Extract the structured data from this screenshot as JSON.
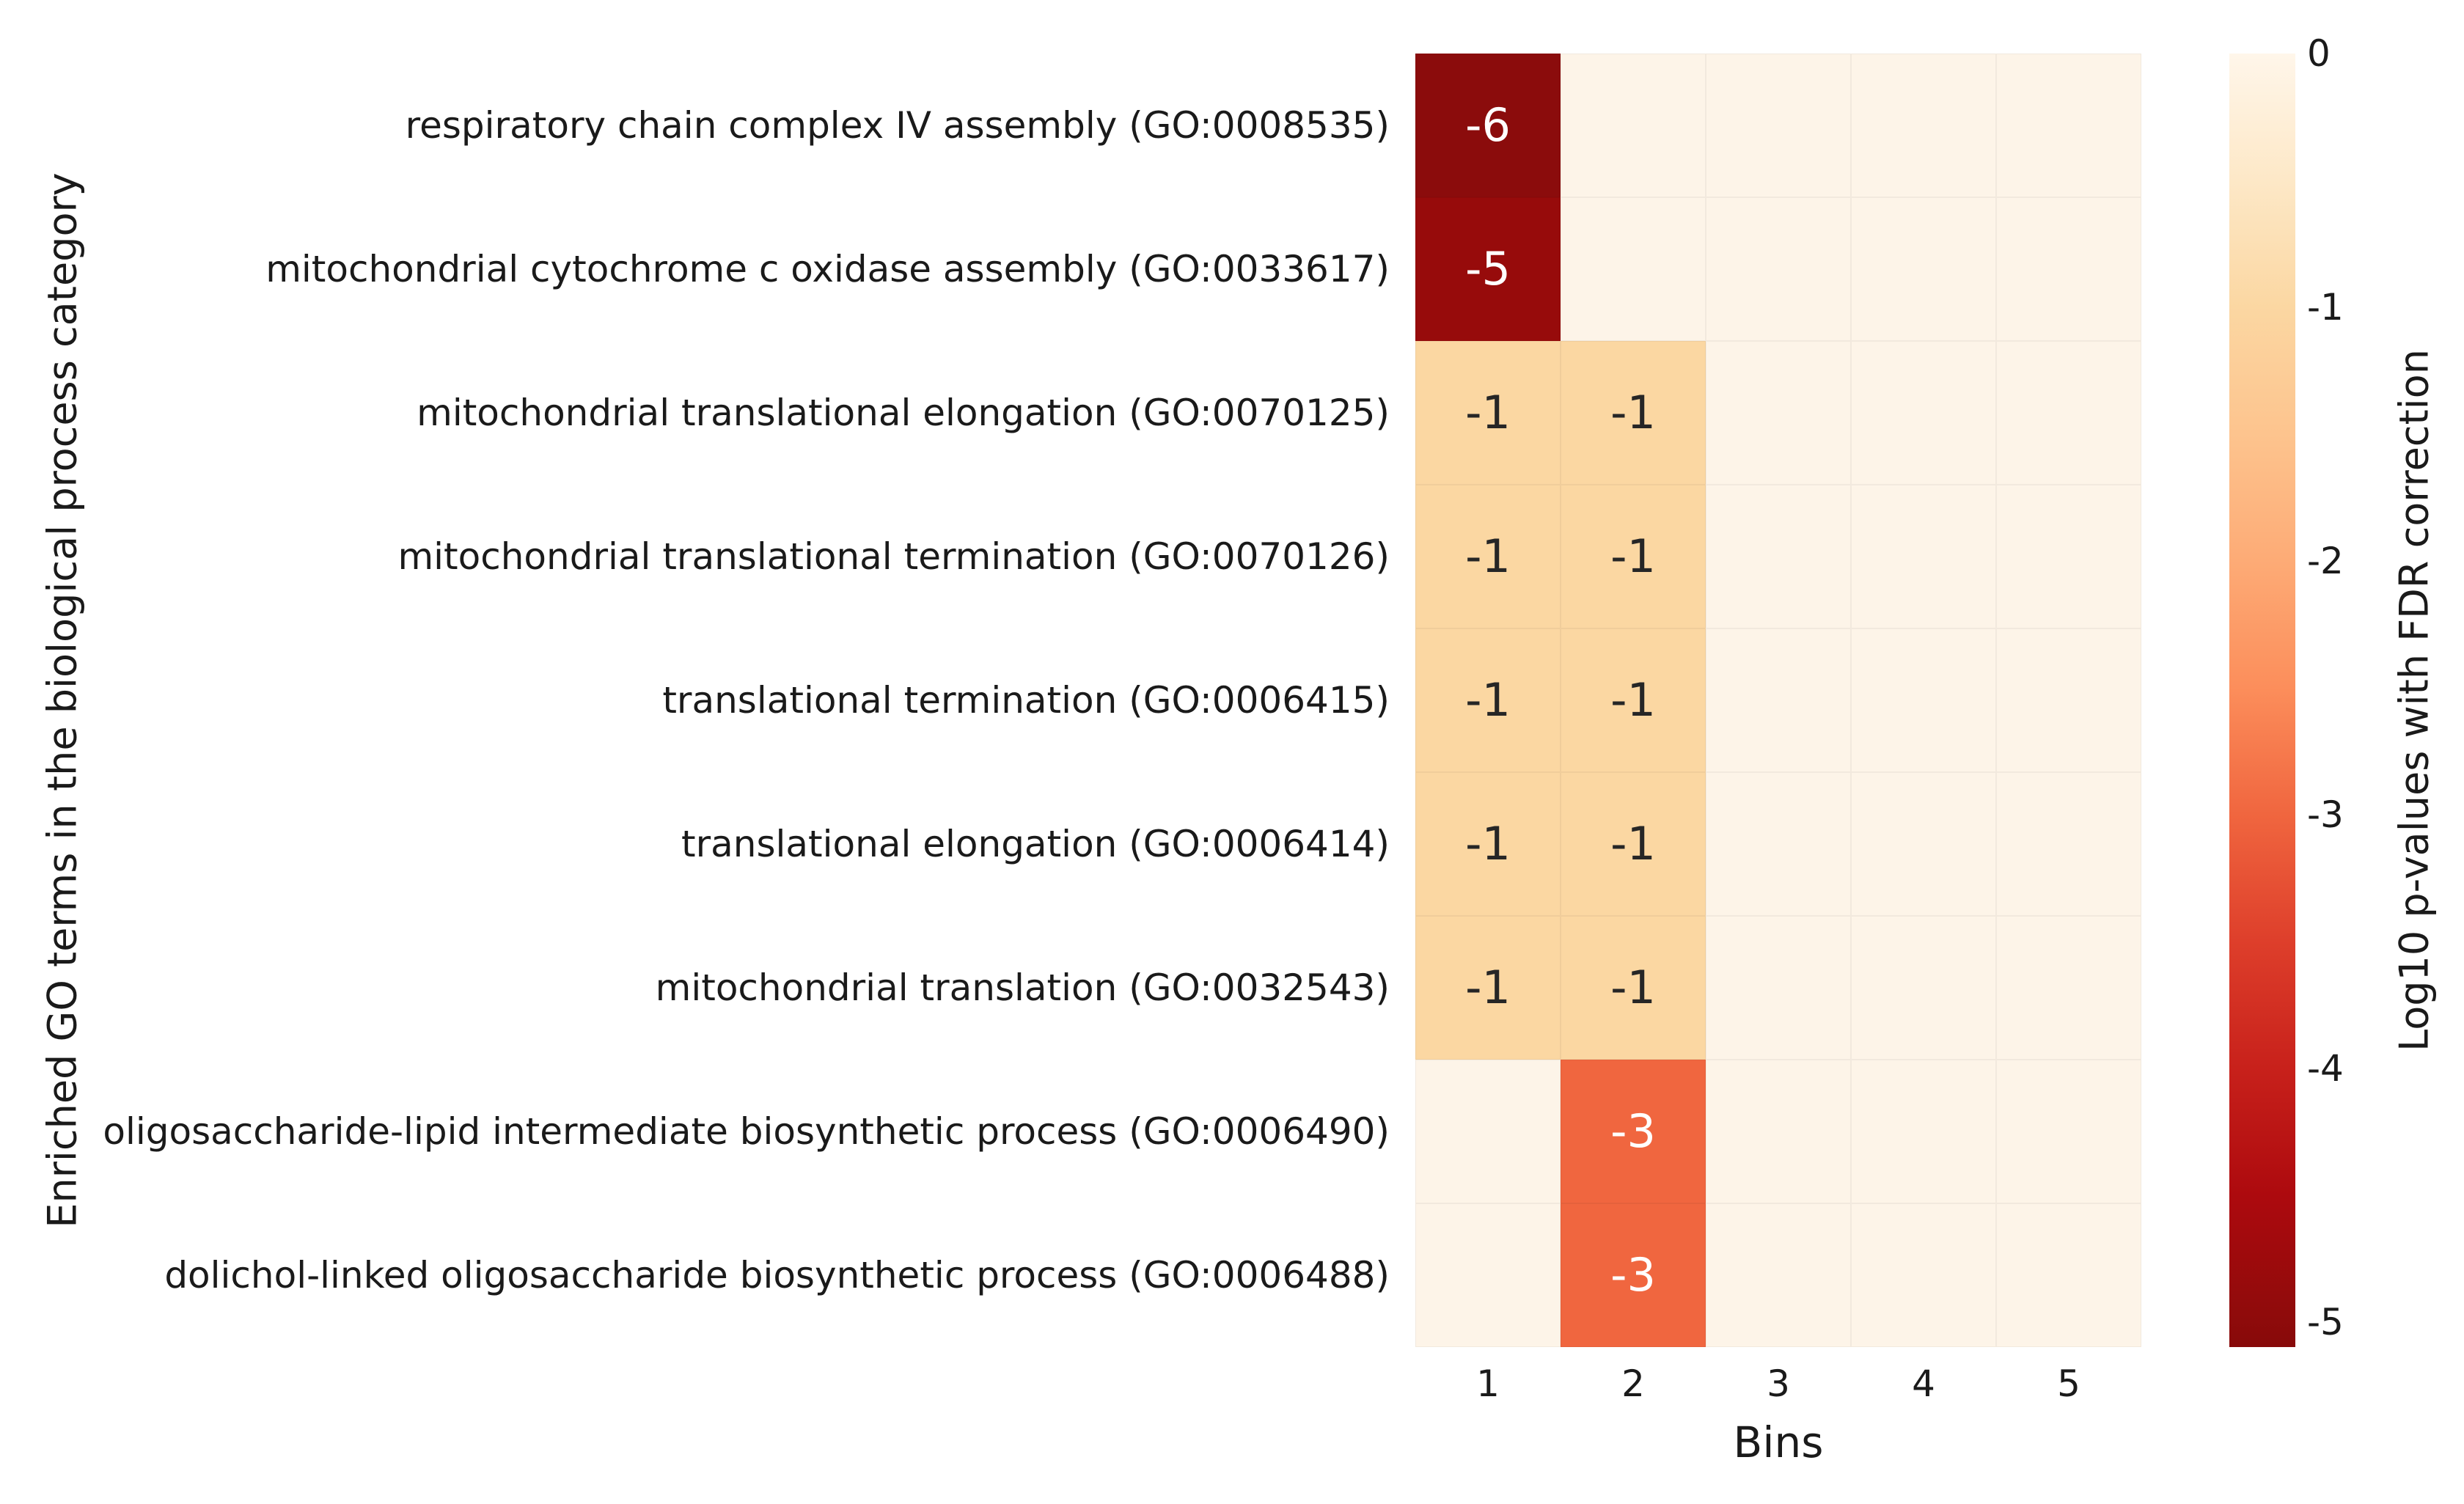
{
  "figure": {
    "background": "#ffffff",
    "text_color": "#1a1a1a"
  },
  "chart_data": {
    "type": "heatmap",
    "xlabel": "Bins",
    "ylabel": "Enriched GO terms in the biological process category",
    "x_categories": [
      "1",
      "2",
      "3",
      "4",
      "5"
    ],
    "rows": [
      {
        "label": "respiratory chain complex IV assembly (GO:0008535)",
        "values": [
          -6,
          null,
          null,
          null,
          null
        ]
      },
      {
        "label": "mitochondrial cytochrome c oxidase assembly (GO:0033617)",
        "values": [
          -5,
          null,
          null,
          null,
          null
        ]
      },
      {
        "label": "mitochondrial translational elongation (GO:0070125)",
        "values": [
          -1,
          -1,
          null,
          null,
          null
        ]
      },
      {
        "label": "mitochondrial translational termination (GO:0070126)",
        "values": [
          -1,
          -1,
          null,
          null,
          null
        ]
      },
      {
        "label": "translational termination (GO:0006415)",
        "values": [
          -1,
          -1,
          null,
          null,
          null
        ]
      },
      {
        "label": "translational elongation (GO:0006414)",
        "values": [
          -1,
          -1,
          null,
          null,
          null
        ]
      },
      {
        "label": "mitochondrial translation (GO:0032543)",
        "values": [
          -1,
          -1,
          null,
          null,
          null
        ]
      },
      {
        "label": "oligosaccharide-lipid intermediate biosynthetic process (GO:0006490)",
        "values": [
          null,
          -3,
          null,
          null,
          null
        ]
      },
      {
        "label": "dolichol-linked oligosaccharide biosynthetic process (GO:0006488)",
        "values": [
          null,
          -3,
          null,
          null,
          null
        ]
      }
    ],
    "grid": false,
    "legend_position": "right-colorbar",
    "colormap": {
      "style": "OrRd (light cream to dark red)",
      "empty_cell": "#fdf4e8",
      "value_colors": {
        "-1": "#fbd7a2",
        "-3": "#f0663f",
        "-5": "#970b0b",
        "-6": "#8b0c0c"
      },
      "annotation_text": {
        "-1": "#262626",
        "-3": "#ffffff",
        "-5": "#ffffff",
        "-6": "#ffffff"
      }
    },
    "colorbar": {
      "label": "Log10 p-values with FDR correction",
      "ticks": [
        "0",
        "-1",
        "-2",
        "-3",
        "-4",
        "-5"
      ],
      "range_top": 0,
      "range_bottom": -5.1,
      "gradient_top": "#fff6ea",
      "gradient_bottom": "#870909"
    }
  }
}
